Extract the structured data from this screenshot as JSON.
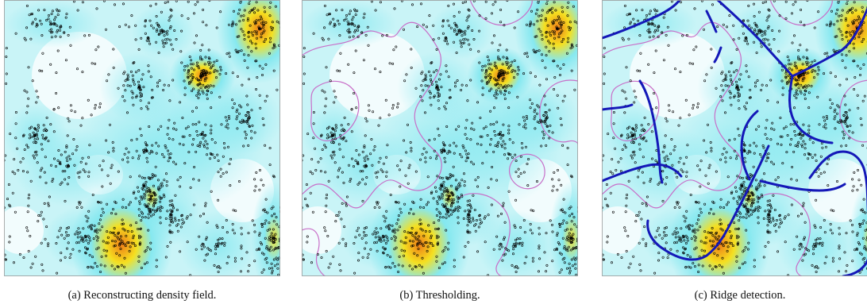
{
  "figure": {
    "panels": [
      {
        "id": "a",
        "caption": "(a)  Reconstructing density field.",
        "show_threshold": false,
        "show_ridges": false
      },
      {
        "id": "b",
        "caption": "(b)  Thresholding.",
        "show_threshold": true,
        "show_ridges": false
      },
      {
        "id": "c",
        "caption": "(c)  Ridge detection.",
        "show_threshold": true,
        "show_ridges": true
      }
    ]
  },
  "colors": {
    "density_low": "#ffffff",
    "density_mid": "#7fe7ef",
    "density_high": "#f5e020",
    "density_peak": "#ef7d17",
    "threshold_contour": "#c86ec8",
    "ridge": "#1418b8",
    "points": "#000000"
  }
}
